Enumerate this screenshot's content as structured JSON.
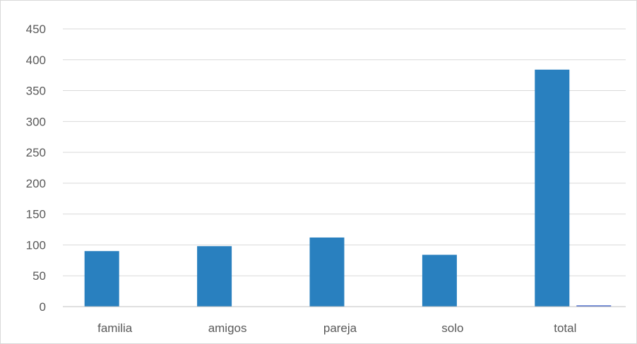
{
  "chart_data": {
    "type": "bar",
    "title": "",
    "xlabel": "",
    "ylabel": "",
    "categories": [
      "familia",
      "amigos",
      "pareja",
      "solo",
      "total"
    ],
    "series": [
      {
        "values": [
          90,
          98,
          112,
          84,
          384
        ],
        "color": "#2980BF"
      },
      {
        "values": [
          0,
          0,
          0,
          0,
          2
        ],
        "color": "#3C5FC8"
      }
    ],
    "ylim": [
      0,
      450
    ],
    "yticks": [
      0,
      50,
      100,
      150,
      200,
      250,
      300,
      350,
      400,
      450
    ],
    "grid": true,
    "legend": "none"
  }
}
